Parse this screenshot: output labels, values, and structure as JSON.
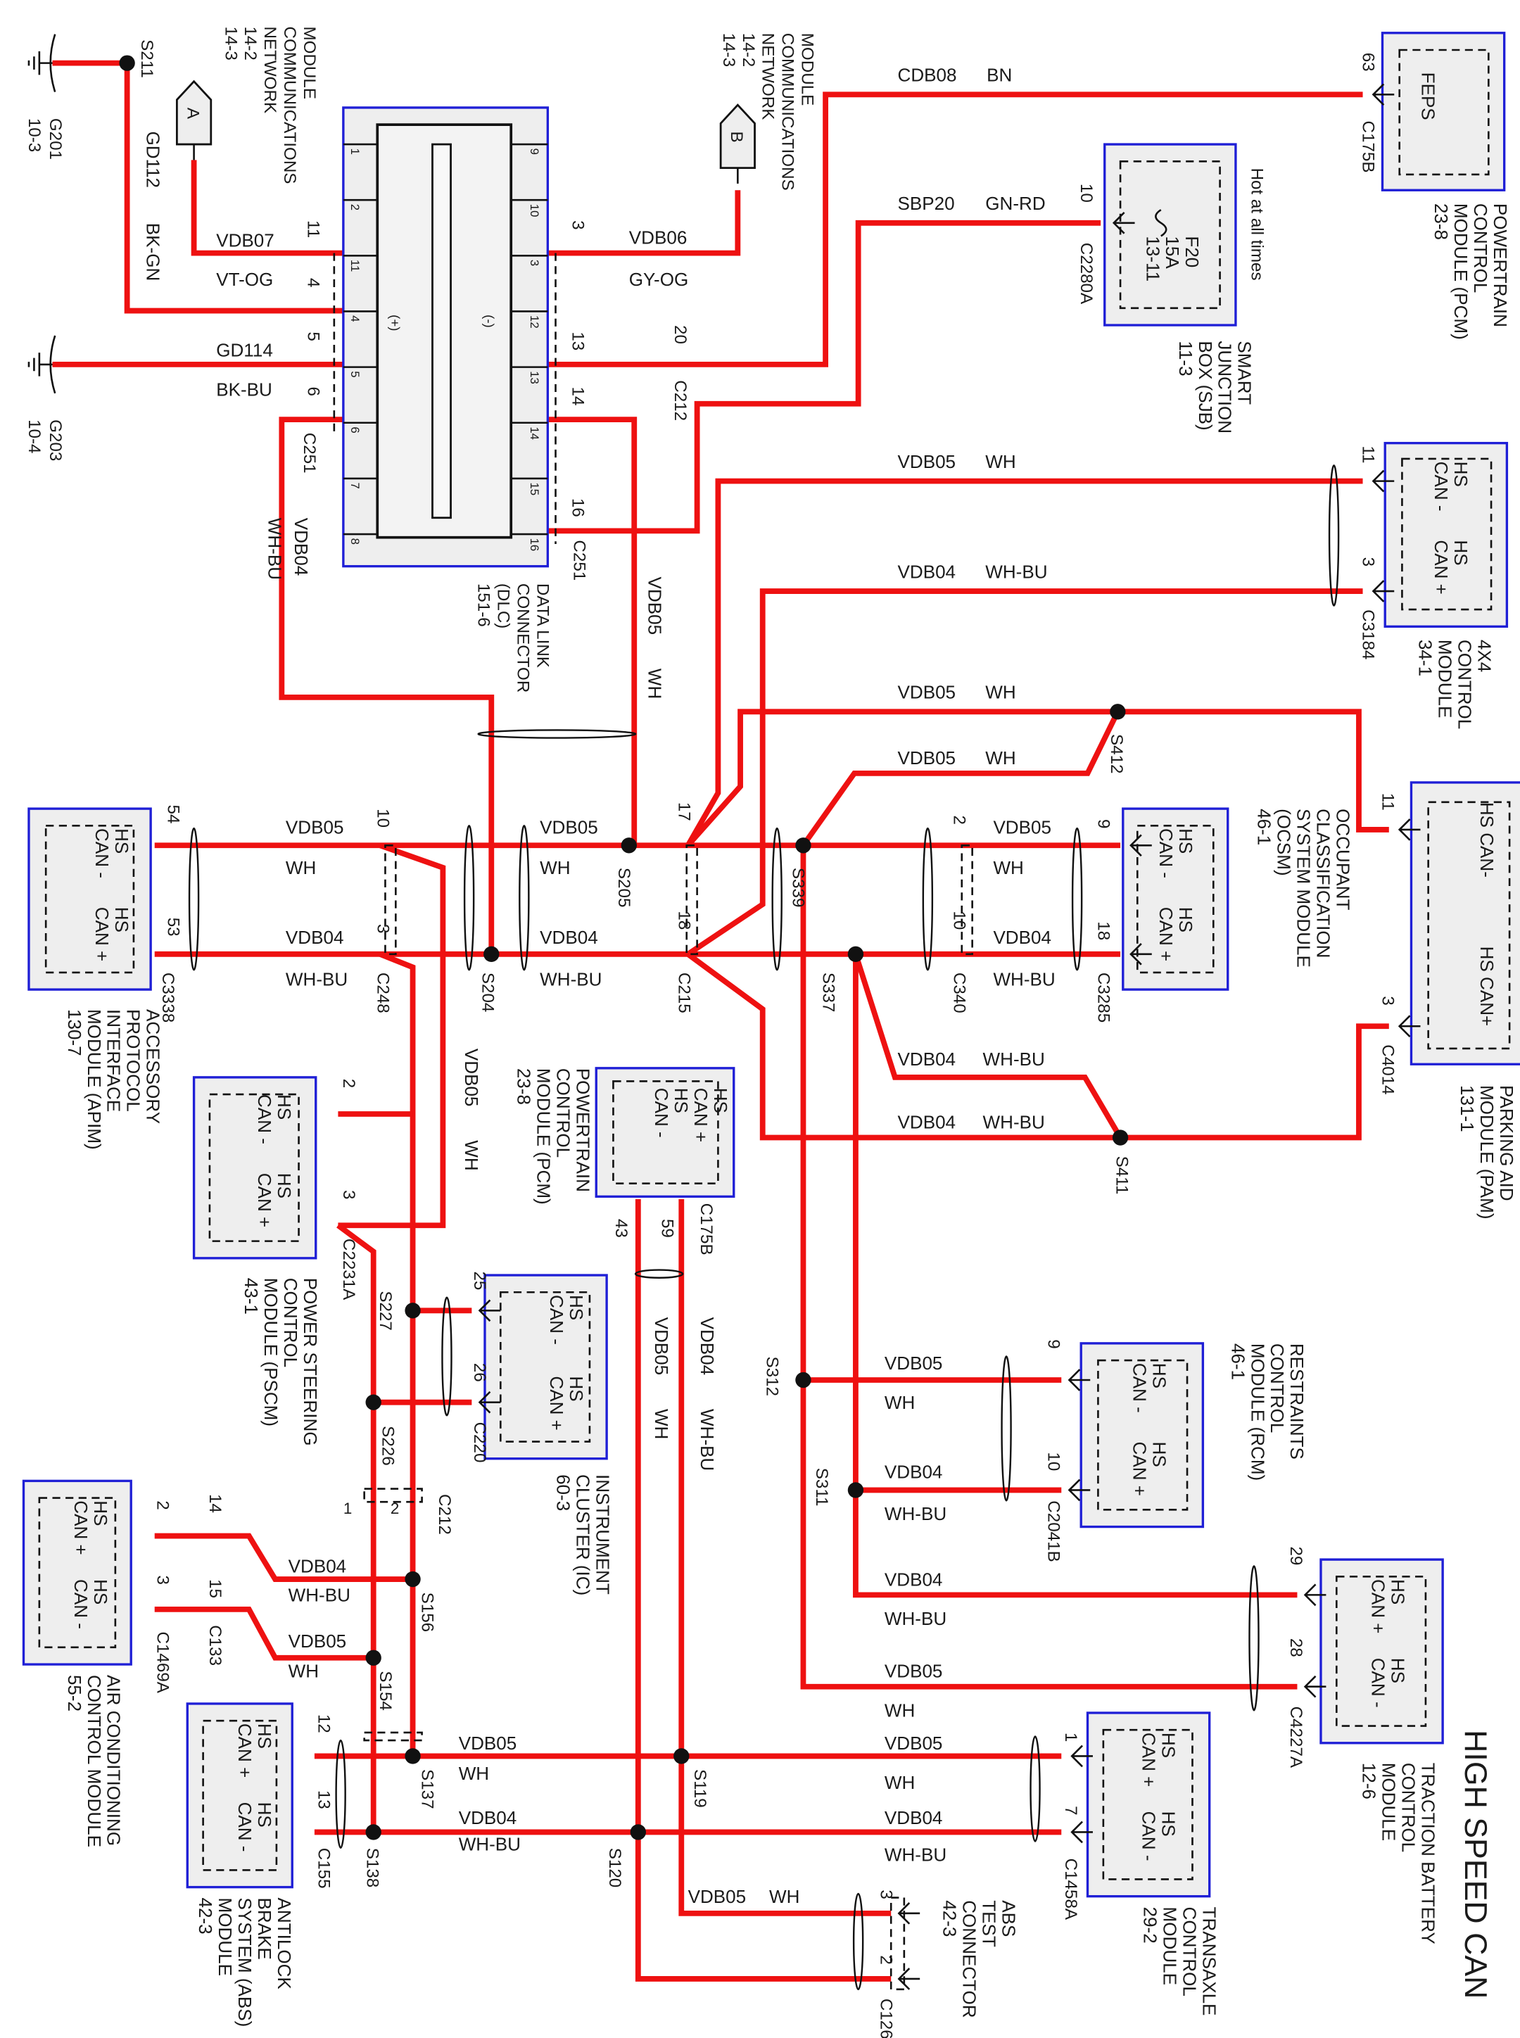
{
  "title": "HIGH SPEED CAN",
  "colors": {
    "wire": "#ee1111",
    "module_border": "#1f1fd6",
    "module_fill": "#eeeeee"
  },
  "grounds": [
    {
      "name": "G201",
      "ref": "10-3"
    },
    {
      "name": "G203",
      "ref": "10-4"
    }
  ],
  "mcn_a": {
    "tag": "A",
    "lines": [
      "MODULE",
      "COMMUNICATIONS",
      "NETWORK",
      "14-2",
      "14-3"
    ]
  },
  "mcn_b": {
    "tag": "B",
    "lines": [
      "MODULE",
      "COMMUNICATIONS",
      "NETWORK",
      "14-2",
      "14-3"
    ]
  },
  "dlc": {
    "lines": [
      "DATA LINK",
      "CONNECTOR",
      "(DLC)",
      "151-6"
    ],
    "plus": "(+)",
    "minus": "(-)",
    "inner_pins_left": [
      "1",
      "2",
      "11",
      "4",
      "5",
      "6",
      "7",
      "8"
    ],
    "inner_pins_right": [
      "9",
      "10",
      "3",
      "12",
      "13",
      "14",
      "15",
      "16"
    ],
    "pins_left": [
      "11",
      "4",
      "5",
      "6"
    ],
    "pins_right": [
      "3",
      "13",
      "14",
      "16"
    ],
    "connector_left": "C251",
    "connector_right": "C251"
  },
  "inline": {
    "c212_top": {
      "name": "C212",
      "pin": "20"
    },
    "c248": {
      "name": "C248",
      "pins": [
        "10",
        "3"
      ]
    },
    "c215": {
      "name": "C215",
      "pins": [
        "17",
        "18"
      ]
    },
    "c340": {
      "name": "C340",
      "pins": [
        "2",
        "10"
      ]
    },
    "c212_bottom": {
      "name": "C212",
      "pins": [
        "1",
        "2"
      ]
    },
    "c133": {
      "name": "C133",
      "pins": [
        "14",
        "15"
      ]
    }
  },
  "splices": [
    "S211",
    "S205",
    "S204",
    "S339",
    "S337",
    "S412",
    "S411",
    "S312",
    "S311",
    "S227",
    "S226",
    "S156",
    "S154",
    "S137",
    "S138",
    "S119",
    "S120"
  ],
  "modules": {
    "pcm_top": {
      "lines": [
        "POWERTRAIN",
        "CONTROL",
        "MODULE (PCM)",
        "23-8"
      ],
      "inner": [
        [
          "FEPS"
        ]
      ],
      "pins": [
        "63"
      ],
      "connector": "C175B"
    },
    "sjb": {
      "lines": [
        "SMART",
        "JUNCTION",
        "BOX (SJB)",
        "11-3"
      ],
      "inner": [
        [
          "F20",
          "15A",
          "13-11"
        ]
      ],
      "note": "Hot at all times",
      "pins": [
        "10"
      ],
      "connector": "C2280A"
    },
    "fourx4": {
      "lines": [
        "4X4",
        "CONTROL",
        "MODULE",
        "34-1"
      ],
      "inner": [
        [
          "HS",
          "CAN -"
        ],
        [
          "HS",
          "CAN +"
        ]
      ],
      "pins": [
        "11",
        "3"
      ],
      "connector": "C3184"
    },
    "pam": {
      "lines": [
        "PARKING AID",
        "MODULE (PAM)",
        "131-1"
      ],
      "inner": [
        [
          "HS CAN-"
        ],
        [
          "HS CAN+"
        ]
      ],
      "pins": [
        "11",
        "3"
      ],
      "connector": "C4014"
    },
    "ocsm": {
      "lines": [
        "OCCUPANT",
        "CLASSIFICATION",
        "SYSTEM MODULE",
        "(OCSM)",
        "46-1"
      ],
      "inner": [
        [
          "HS",
          "CAN -"
        ],
        [
          "HS",
          "CAN +"
        ]
      ],
      "pins": [
        "9",
        "18"
      ],
      "connector": "C3285"
    },
    "apim": {
      "lines": [
        "ACCESSORY",
        "PROTOCOL",
        "INTERFACE",
        "MODULE (APIM)",
        "130-7"
      ],
      "inner": [
        [
          "HS",
          "CAN -"
        ],
        [
          "HS",
          "CAN +"
        ]
      ],
      "pins": [
        "54",
        "53"
      ],
      "connector": "C3338"
    },
    "pcm_mid": {
      "lines": [
        "POWERTRAIN",
        "CONTROL",
        "MODULE (PCM)",
        "23-8"
      ],
      "inner": [
        [
          "HS",
          "CAN +",
          "HS",
          "CAN -"
        ]
      ],
      "pins": [
        "43",
        "59"
      ],
      "connector": "C175B"
    },
    "pscm": {
      "lines": [
        "POWER STEERING",
        "CONTROL",
        "MODULE (PSCM)",
        "43-1"
      ],
      "inner": [
        [
          "HS",
          "CAN -"
        ],
        [
          "HS",
          "CAN +"
        ]
      ],
      "pins": [
        "2",
        "3"
      ],
      "connector": "C2231A"
    },
    "ic": {
      "lines": [
        "INSTRUMENT",
        "CLUSTER (IC)",
        "60-3"
      ],
      "inner": [
        [
          "HS",
          "CAN -"
        ],
        [
          "HS",
          "CAN +"
        ]
      ],
      "pins": [
        "25",
        "26"
      ],
      "connector": "C220"
    },
    "rcm": {
      "lines": [
        "RESTRAINTS",
        "CONTROL",
        "MODULE (RCM)",
        "46-1"
      ],
      "inner": [
        [
          "HS",
          "CAN -"
        ],
        [
          "HS",
          "CAN +"
        ]
      ],
      "pins": [
        "9",
        "10"
      ],
      "connector": "C2041B"
    },
    "tbcm": {
      "lines": [
        "TRACTION BATTERY",
        "CONTROL",
        "MODULE",
        "12-6"
      ],
      "inner": [
        [
          "HS",
          "CAN +"
        ],
        [
          "HS",
          "CAN -"
        ]
      ],
      "pins": [
        "29",
        "28"
      ],
      "connector": "C4227A"
    },
    "acm": {
      "lines": [
        "AIR CONDITIONING",
        "CONTROL MODULE",
        "55-2"
      ],
      "inner": [
        [
          "HS",
          "CAN +"
        ],
        [
          "HS",
          "CAN -"
        ]
      ],
      "pins": [
        "2",
        "3"
      ],
      "connector": "C1469A"
    },
    "abs": {
      "lines": [
        "ANTILOCK",
        "BRAKE",
        "SYSTEM (ABS)",
        "MODULE",
        "42-3"
      ],
      "inner": [
        [
          "HS",
          "CAN +"
        ],
        [
          "HS",
          "CAN -"
        ]
      ],
      "pins": [
        "12",
        "13"
      ],
      "connector": "C155"
    },
    "tcm": {
      "lines": [
        "TRANSAXLE",
        "CONTROL",
        "MODULE",
        "29-2"
      ],
      "inner": [
        [
          "HS",
          "CAN +"
        ],
        [
          "HS",
          "CAN -"
        ]
      ],
      "pins": [
        "1",
        "7"
      ],
      "connector": "C1458A"
    },
    "abs_test": {
      "lines": [
        "ABS",
        "TEST",
        "CONNECTOR",
        "42-3"
      ],
      "inner": [],
      "pins": [
        "3",
        "2"
      ],
      "connector": "C126"
    }
  },
  "wire_labels": [
    {
      "circuit": "GD112",
      "color": "BK-GN"
    },
    {
      "circuit": "VDB07",
      "color": "VT-OG"
    },
    {
      "circuit": "GD114",
      "color": "BK-BU"
    },
    {
      "circuit": "VDB04",
      "color": "WH-BU"
    },
    {
      "circuit": "VDB06",
      "color": "GY-OG"
    },
    {
      "circuit": "CDB08",
      "color": "BN"
    },
    {
      "circuit": "SBP20",
      "color": "GN-RD"
    },
    {
      "circuit": "VDB05",
      "color": "WH"
    },
    {
      "circuit": "VDB05",
      "color": "WH"
    },
    {
      "circuit": "VDB04",
      "color": "WH-BU"
    },
    {
      "circuit": "VDB05",
      "color": "WH"
    },
    {
      "circuit": "VDB05",
      "color": "WH"
    },
    {
      "circuit": "VDB05",
      "color": "WH"
    },
    {
      "circuit": "VDB05",
      "color": "WH"
    },
    {
      "circuit": "VDB04",
      "color": "WH-BU"
    },
    {
      "circuit": "VDB04",
      "color": "WH-BU"
    },
    {
      "circuit": "VDB05",
      "color": "WH"
    },
    {
      "circuit": "VDB04",
      "color": "WH-BU"
    },
    {
      "circuit": "VDB04",
      "color": "WH-BU"
    },
    {
      "circuit": "VDB04",
      "color": "WH-BU"
    },
    {
      "circuit": "VDB05",
      "color": "WH"
    },
    {
      "circuit": "VDB05",
      "color": "WH"
    },
    {
      "circuit": "VDB04",
      "color": "WH-BU"
    },
    {
      "circuit": "VDB05",
      "color": "WH"
    },
    {
      "circuit": "VDB04",
      "color": "WH-BU"
    },
    {
      "circuit": "VDB04",
      "color": "WH-BU"
    },
    {
      "circuit": "VDB05",
      "color": "WH"
    },
    {
      "circuit": "VDB04",
      "color": "WH-BU"
    },
    {
      "circuit": "VDB05",
      "color": "WH"
    },
    {
      "circuit": "VDB05",
      "color": "WH"
    },
    {
      "circuit": "VDB04",
      "color": "WH-BU"
    },
    {
      "circuit": "VDB05",
      "color": "WH"
    },
    {
      "circuit": "VDB04",
      "color": "WH-BU"
    },
    {
      "circuit": "VDB05",
      "color": "WH"
    }
  ]
}
